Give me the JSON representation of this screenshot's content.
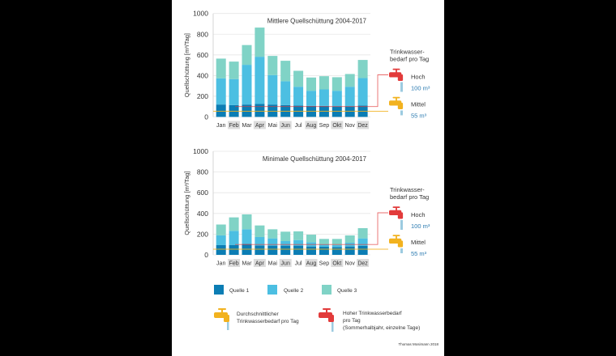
{
  "colors": {
    "quelle1": "#0b7db4",
    "quelle2": "#4cbfe2",
    "quelle3": "#80d3c6",
    "hoch": "#e23b3b",
    "mittel": "#f2b21f",
    "water": "#9ccbe0",
    "value_text": "#2a7ab0"
  },
  "chart_data": [
    {
      "type": "bar",
      "stacked": true,
      "title": "Mittlere Quellschüttung 2004-2017",
      "ylabel": "Quellschüttung [m³/Tag]",
      "ylim": [
        0,
        1000
      ],
      "yticks": [
        0,
        200,
        400,
        600,
        800,
        1000
      ],
      "grid": true,
      "categories": [
        "Jan",
        "Feb",
        "Mar",
        "Apr",
        "Mai",
        "Jun",
        "Jul",
        "Aug",
        "Sep",
        "Okt",
        "Nov",
        "Dez"
      ],
      "highlighted_categories": [
        "Feb",
        "Apr",
        "Jun",
        "Aug",
        "Okt",
        "Dez"
      ],
      "series": [
        {
          "name": "Quelle 1",
          "values": [
            120,
            115,
            120,
            125,
            120,
            115,
            110,
            107,
            107,
            104,
            104,
            110
          ]
        },
        {
          "name": "Quelle 2",
          "values": [
            253,
            251,
            384,
            457,
            285,
            230,
            182,
            146,
            159,
            149,
            188,
            266
          ]
        },
        {
          "name": "Quelle 3",
          "values": [
            191,
            169,
            191,
            282,
            185,
            198,
            154,
            128,
            128,
            131,
            123,
            175
          ]
        }
      ],
      "reference_lines": [
        {
          "label": "Hoch",
          "value": 100,
          "value_label": "100 m³"
        },
        {
          "label": "Mittel",
          "value": 55,
          "value_label": "55 m³"
        }
      ],
      "side_heading": [
        "Trinkwasser-",
        "bedarf pro Tag"
      ]
    },
    {
      "type": "bar",
      "stacked": true,
      "title": "Minimale Quellschüttung 2004-2017",
      "ylabel": "Quellschüttung [m³/Tag]",
      "ylim": [
        0,
        1000
      ],
      "yticks": [
        0,
        200,
        400,
        600,
        800,
        1000
      ],
      "grid": true,
      "categories": [
        "Jan",
        "Feb",
        "Mar",
        "Apr",
        "Mai",
        "Jun",
        "Jul",
        "Aug",
        "Sep",
        "Okt",
        "Nov",
        "Dez"
      ],
      "highlighted_categories": [
        "Feb",
        "Apr",
        "Jun",
        "Aug",
        "Okt",
        "Dez"
      ],
      "series": [
        {
          "name": "Quelle 1",
          "values": [
            94,
            96,
            107,
            91,
            89,
            89,
            89,
            81,
            78,
            76,
            81,
            86
          ]
        },
        {
          "name": "Quelle 2",
          "values": [
            94,
            136,
            140,
            81,
            70,
            44,
            54,
            41,
            24,
            20,
            36,
            73
          ]
        },
        {
          "name": "Quelle 3",
          "values": [
            105,
            130,
            144,
            112,
            88,
            91,
            84,
            73,
            52,
            58,
            71,
            99
          ]
        }
      ],
      "reference_lines": [
        {
          "label": "Hoch",
          "value": 100,
          "value_label": "100 m³"
        },
        {
          "label": "Mittel",
          "value": 55,
          "value_label": "55 m³"
        }
      ],
      "side_heading": [
        "Trinkwasser-",
        "bedarf pro Tag"
      ]
    }
  ],
  "legend": {
    "sources": [
      "Quelle 1",
      "Quelle 2",
      "Quelle 3"
    ],
    "mittel_text": [
      "Durchschnittlicher",
      "Trinkwasserbedarf pro Tag"
    ],
    "hoch_text": [
      "Hoher Trinkwasserbedarf",
      "pro Tag",
      "(Sommerhalbjahr, einzelne Tage)"
    ]
  },
  "credit": "Thomas Mosimann 2018"
}
